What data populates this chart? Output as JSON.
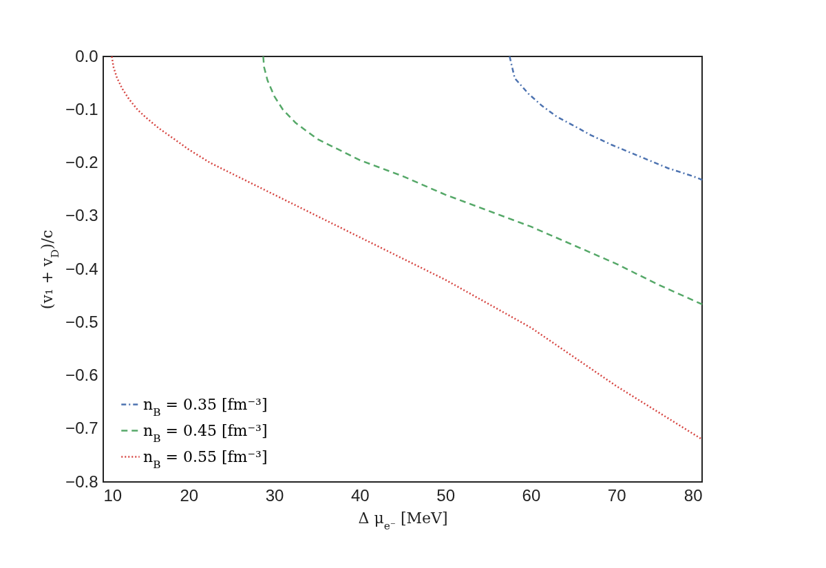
{
  "chart_data": {
    "type": "line",
    "xlabel": "Δ μ$_{e⁻}$ [MeV]",
    "ylabel": "(v₁ + v$_{D}$)/c",
    "xlim": [
      10,
      80
    ],
    "xticks": [
      10,
      20,
      30,
      40,
      50,
      60,
      70,
      80
    ],
    "ylim": [
      -0.8,
      0
    ],
    "yticks": [
      {
        "value": 0,
        "label": "0.0"
      },
      -0.1,
      -0.2,
      -0.3,
      -0.4,
      -0.5,
      -0.6,
      -0.7,
      -0.8
    ],
    "grid": false,
    "legend": "bottom left",
    "marker": "none",
    "series": [
      {
        "name": "n$_{B}$ = 0.35 [fm⁻³]",
        "color": "#4c72b0",
        "line_style": "dashdot",
        "x": [
          57.5,
          58.1,
          59.7,
          61.3,
          63,
          65.2,
          67,
          69.4,
          71.5,
          73.6,
          76,
          78.9,
          80
        ],
        "values": [
          0,
          -0.041,
          -0.07,
          -0.093,
          -0.113,
          -0.132,
          -0.148,
          -0.166,
          -0.18,
          -0.194,
          -0.21,
          -0.225,
          -0.232
        ]
      },
      {
        "name": "n$_{B}$ = 0.45 [fm⁻³]",
        "color": "#55a868",
        "line_style": "dashed",
        "x": [
          28.7,
          28.8,
          29.2,
          30,
          31,
          32.5,
          35,
          40,
          45,
          50,
          55,
          60,
          65,
          70,
          75,
          80
        ],
        "values": [
          0,
          -0.02,
          -0.045,
          -0.075,
          -0.1,
          -0.125,
          -0.155,
          -0.195,
          -0.225,
          -0.26,
          -0.29,
          -0.32,
          -0.355,
          -0.39,
          -0.43,
          -0.466
        ]
      },
      {
        "name": "n$_{B}$ = 0.55 [fm⁻³]",
        "color": "#d64541",
        "line_style": "dotted",
        "x": [
          11,
          11.2,
          11.6,
          12.2,
          13,
          14,
          15,
          16.5,
          18,
          20,
          22.5,
          25,
          27.5,
          30,
          35,
          40,
          45,
          50,
          55,
          60,
          65,
          70,
          75,
          80
        ],
        "values": [
          0,
          -0.02,
          -0.04,
          -0.06,
          -0.08,
          -0.1,
          -0.115,
          -0.135,
          -0.152,
          -0.175,
          -0.2,
          -0.22,
          -0.24,
          -0.26,
          -0.3,
          -0.34,
          -0.38,
          -0.42,
          -0.465,
          -0.51,
          -0.565,
          -0.62,
          -0.67,
          -0.72
        ]
      }
    ]
  }
}
